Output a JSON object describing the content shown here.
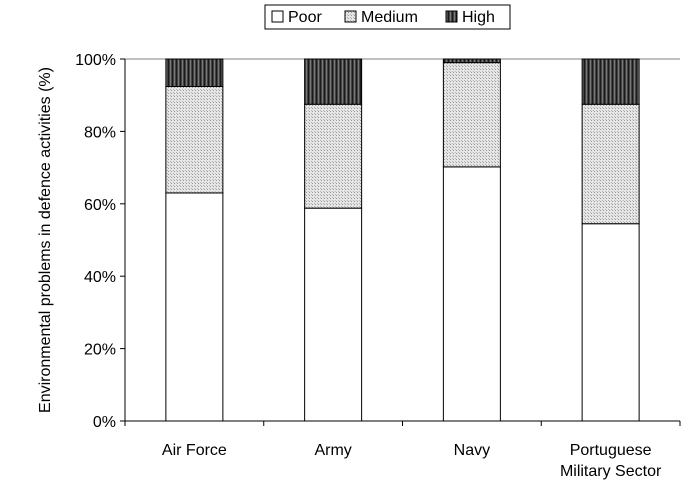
{
  "chart_data": {
    "type": "bar",
    "stacked": true,
    "categories": [
      "Air Force",
      "Army",
      "Navy",
      "Portuguese Military Sector"
    ],
    "category_label_lines": [
      [
        "Air Force"
      ],
      [
        "Army"
      ],
      [
        "Navy"
      ],
      [
        "Portuguese",
        "Military Sector"
      ]
    ],
    "series": [
      {
        "name": "Poor",
        "values": [
          63,
          58.8,
          70.2,
          54.5
        ]
      },
      {
        "name": "Medium",
        "values": [
          29.4,
          28.7,
          28.8,
          33.0
        ]
      },
      {
        "name": "High",
        "values": [
          7.6,
          12.5,
          1.0,
          12.5
        ]
      }
    ],
    "ylabel": "Environmental problems in defence activities (%)",
    "xlabel": "",
    "ylim": [
      0,
      100
    ],
    "yticks": [
      0,
      20,
      40,
      60,
      80,
      100
    ],
    "ytick_labels": [
      "0%",
      "20%",
      "40%",
      "60%",
      "80%",
      "100%"
    ],
    "gridline_at": 100,
    "legend_position": "top-center",
    "series_colors": {
      "Poor": "#ffffff",
      "Medium": "#d9d9d9",
      "High": "#3c3c3c"
    }
  }
}
